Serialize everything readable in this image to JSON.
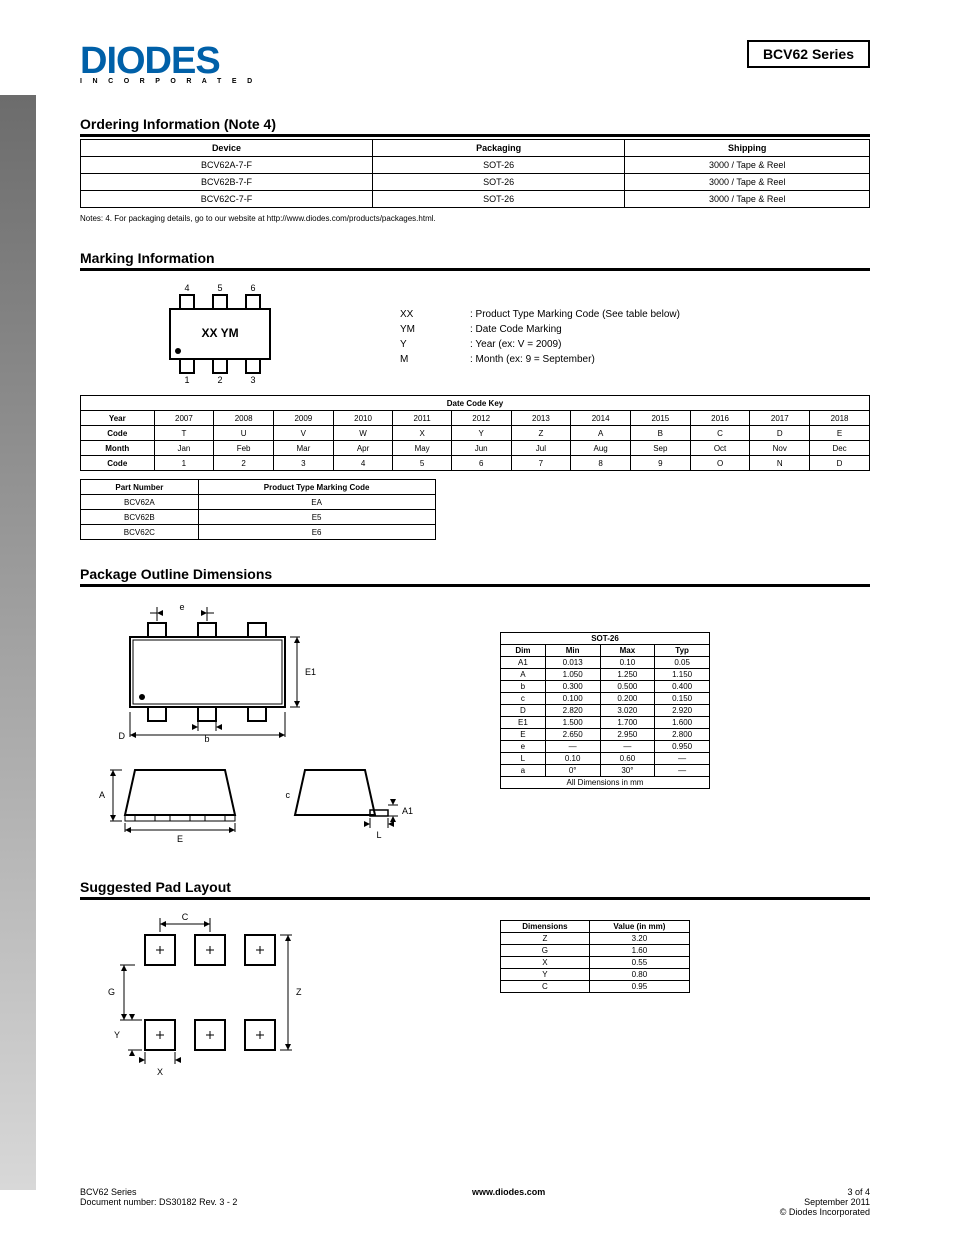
{
  "header": {
    "logo_main": "DIODES",
    "logo_reg": "®",
    "logo_sub": "I N C O R P O R A T E D",
    "part_number": "BCV62",
    "part_number_series": "BCV62 Series"
  },
  "ordering": {
    "title": "Ordering Information   (Note 4)",
    "columns": [
      "Device",
      "Packaging",
      "Shipping"
    ],
    "rows": [
      [
        "BCV62A-7-F",
        "SOT-26",
        "3000 / Tape & Reel"
      ],
      [
        "BCV62B-7-F",
        "SOT-26",
        "3000 / Tape & Reel"
      ],
      [
        "BCV62C-7-F",
        "SOT-26",
        "3000 / Tape & Reel"
      ]
    ],
    "note": "Notes:   4. For packaging details, go to our website at http://www.diodes.com/products/packages.html."
  },
  "marking": {
    "title": "Marking Information",
    "pin_labels": [
      "4",
      "5",
      "6",
      "1",
      "2",
      "3"
    ],
    "chip_text_line1": "XX YM",
    "desc": [
      {
        "k": "XX",
        "v": ": Product Type Marking Code (See table below)"
      },
      {
        "k": "YM",
        "v": ": Date Code Marking"
      },
      {
        "k": "Y",
        "v": ": Year (ex: V = 2009)"
      },
      {
        "k": "M",
        "v": ": Month (ex: 9 = September)"
      }
    ],
    "date_code": {
      "columns": [
        "Date Code Key",
        "",
        "",
        "",
        "",
        "",
        "",
        "",
        "",
        "",
        "",
        "",
        ""
      ],
      "year_row": [
        "Year",
        "2007",
        "2008",
        "2009",
        "2010",
        "2011",
        "2012",
        "2013",
        "2014",
        "2015",
        "2016",
        "2017",
        "2018"
      ],
      "year_code": [
        "Code",
        "T",
        "U",
        "V",
        "W",
        "X",
        "Y",
        "Z",
        "A",
        "B",
        "C",
        "D",
        "E"
      ],
      "month_row": [
        "Month",
        "Jan",
        "Feb",
        "Mar",
        "Apr",
        "May",
        "Jun",
        "Jul",
        "Aug",
        "Sep",
        "Oct",
        "Nov",
        "Dec"
      ],
      "month_code": [
        "Code",
        "1",
        "2",
        "3",
        "4",
        "5",
        "6",
        "7",
        "8",
        "9",
        "O",
        "N",
        "D"
      ]
    },
    "type_code": {
      "columns": [
        "Part Number",
        "Product Type Marking Code"
      ],
      "rows": [
        [
          "BCV62A",
          "EA"
        ],
        [
          "BCV62B",
          "E5"
        ],
        [
          "BCV62C",
          "E6"
        ]
      ]
    }
  },
  "outline": {
    "title": "Package Outline Dimensions",
    "dim_labels": {
      "e": "e",
      "b": "b",
      "D": "D",
      "E1": "E1",
      "A1": "A1",
      "A": "A",
      "E": "E",
      "L": "L",
      "c": "c"
    },
    "table_title": "SOT-26",
    "columns": [
      "Dim",
      "Min",
      "Max",
      "Typ"
    ],
    "rows": [
      [
        "A1",
        "0.013",
        "0.10",
        "0.05"
      ],
      [
        "A",
        "1.050",
        "1.250",
        "1.150"
      ],
      [
        "b",
        "0.300",
        "0.500",
        "0.400"
      ],
      [
        "c",
        "0.100",
        "0.200",
        "0.150"
      ],
      [
        "D",
        "2.820",
        "3.020",
        "2.920"
      ],
      [
        "E1",
        "1.500",
        "1.700",
        "1.600"
      ],
      [
        "E",
        "2.650",
        "2.950",
        "2.800"
      ],
      [
        "e",
        "—",
        "—",
        "0.950"
      ],
      [
        "L",
        "0.10",
        "0.60",
        "—"
      ],
      [
        "a",
        "0°",
        "30°",
        "—"
      ]
    ],
    "units": "All Dimensions in mm"
  },
  "land": {
    "title": "Suggested Pad Layout",
    "dim_labels": {
      "G": "G",
      "Z": "Z",
      "C": "C",
      "X": "X",
      "Y": "Y"
    },
    "columns": [
      "Dimensions",
      "Value (in mm)"
    ],
    "rows": [
      [
        "Z",
        "3.20"
      ],
      [
        "G",
        "1.60"
      ],
      [
        "X",
        "0.55"
      ],
      [
        "Y",
        "0.80"
      ],
      [
        "C",
        "0.95"
      ]
    ]
  },
  "footer": {
    "left": "BCV62 Series",
    "center1": "Document number: DS30182 Rev. 3 - 2",
    "center2": "www.diodes.com",
    "right1": "3 of 4",
    "right2": "September 2011",
    "right3": "© Diodes Incorporated"
  }
}
